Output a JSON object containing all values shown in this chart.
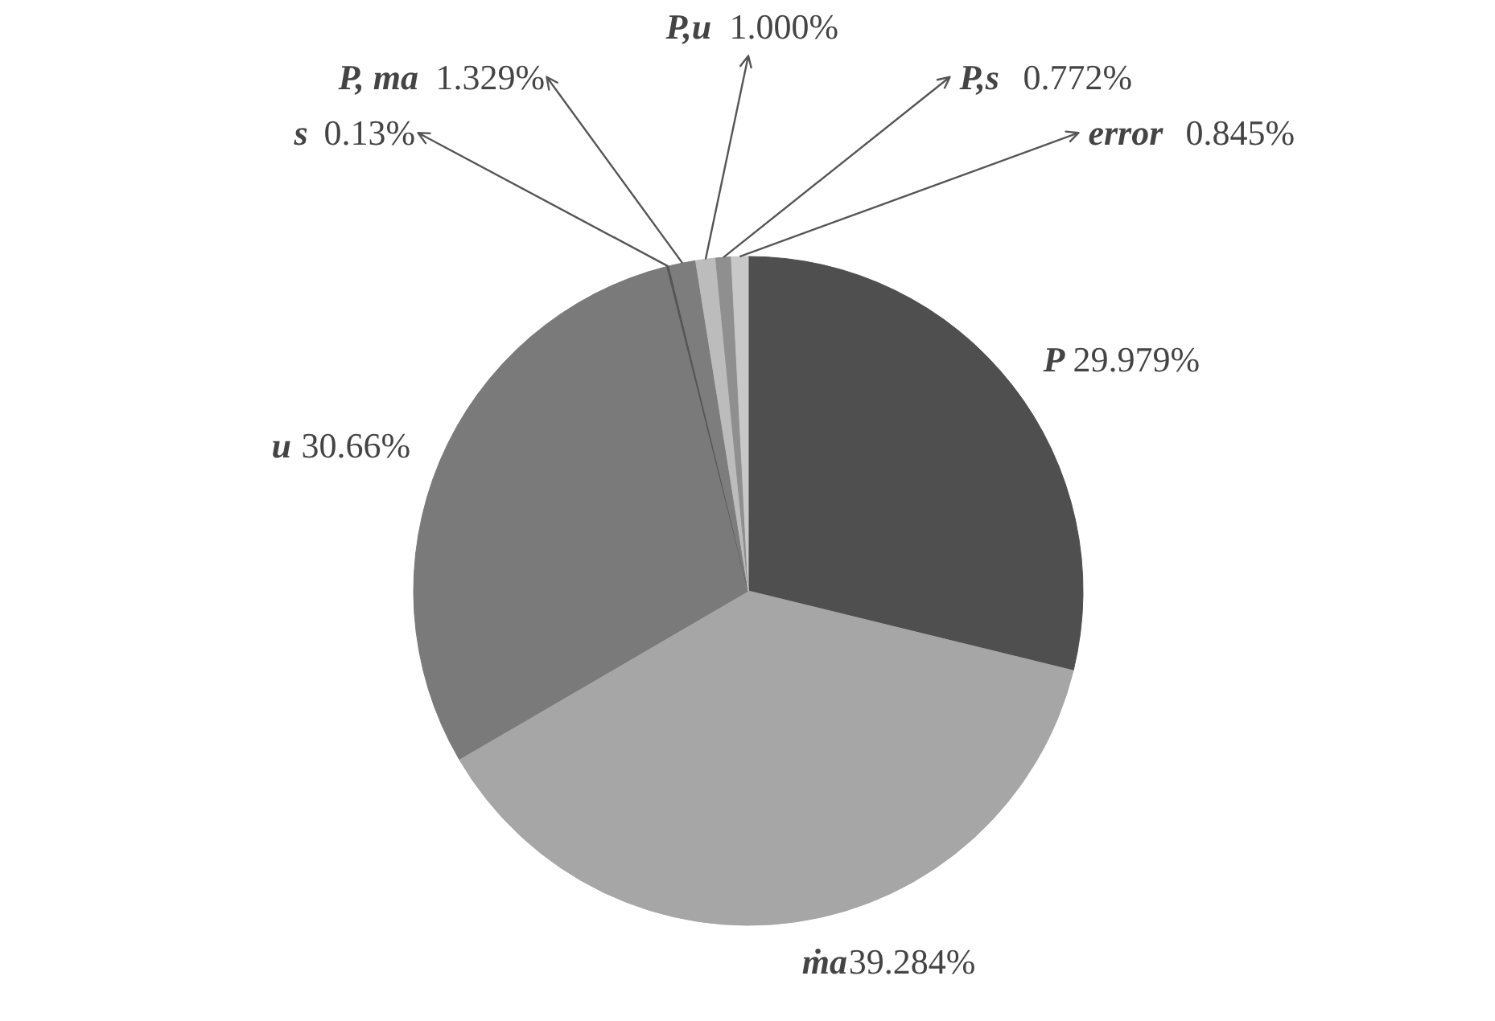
{
  "chart_data": {
    "type": "pie",
    "categories": [
      "P",
      "ṁa",
      "u",
      "s",
      "P, ma",
      "P,u",
      "P,s",
      "error"
    ],
    "values": [
      29.979,
      39.284,
      30.66,
      0.13,
      1.329,
      1.0,
      0.772,
      0.845
    ],
    "value_labels": [
      "29.979%",
      "39.284%",
      "30.66%",
      "0.13%",
      "1.329%",
      "1.000%",
      "0.772%",
      "0.845%"
    ],
    "colors": [
      "#4f4f4f",
      "#a6a6a6",
      "#7a7a7a",
      "#555555",
      "#7d7d7d",
      "#bcbcbc",
      "#8f8f8f",
      "#c8c8c8"
    ]
  }
}
